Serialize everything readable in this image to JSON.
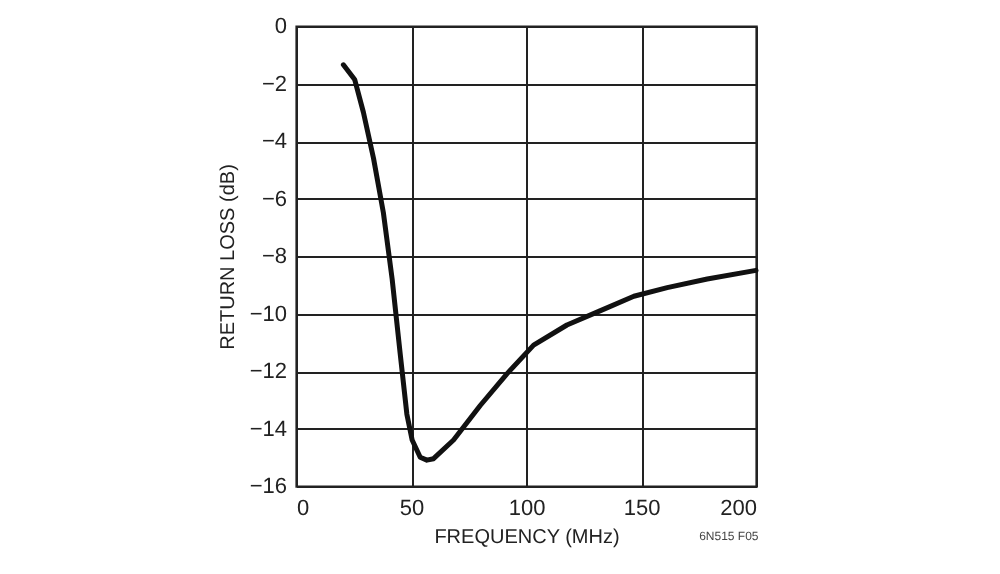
{
  "chart_data": {
    "type": "line",
    "xlabel": "FREQUENCY (MHz)",
    "ylabel": "RETURN LOSS (dB)",
    "annotations": [
      "6N515 F05"
    ],
    "x": [
      20.6,
      25.5,
      29.3,
      33.7,
      38,
      41.8,
      45.3,
      48.2,
      50.5,
      54,
      56.9,
      59.8,
      68.5,
      80.1,
      91.7,
      103.3,
      117.8,
      132.4,
      146.9,
      161.4,
      178.8,
      200
    ],
    "series": [
      {
        "color": "#111111",
        "values": [
          -1.35,
          -1.86,
          -3.0,
          -4.6,
          -6.5,
          -8.8,
          -11.4,
          -13.5,
          -14.4,
          -15.0,
          -15.1,
          -15.05,
          -14.4,
          -13.2,
          -12.1,
          -11.1,
          -10.4,
          -9.9,
          -9.4,
          -9.1,
          -8.8,
          -8.5
        ]
      }
    ],
    "xlim": [
      0,
      200
    ],
    "xticks": [
      0,
      50,
      100,
      150,
      200
    ],
    "ylim": [
      -16,
      0
    ],
    "yticks": [
      -16,
      -14,
      -12,
      -10,
      -8,
      -6,
      -4,
      -2,
      0
    ],
    "grid": true,
    "line_style": "solid",
    "marker": "none"
  }
}
